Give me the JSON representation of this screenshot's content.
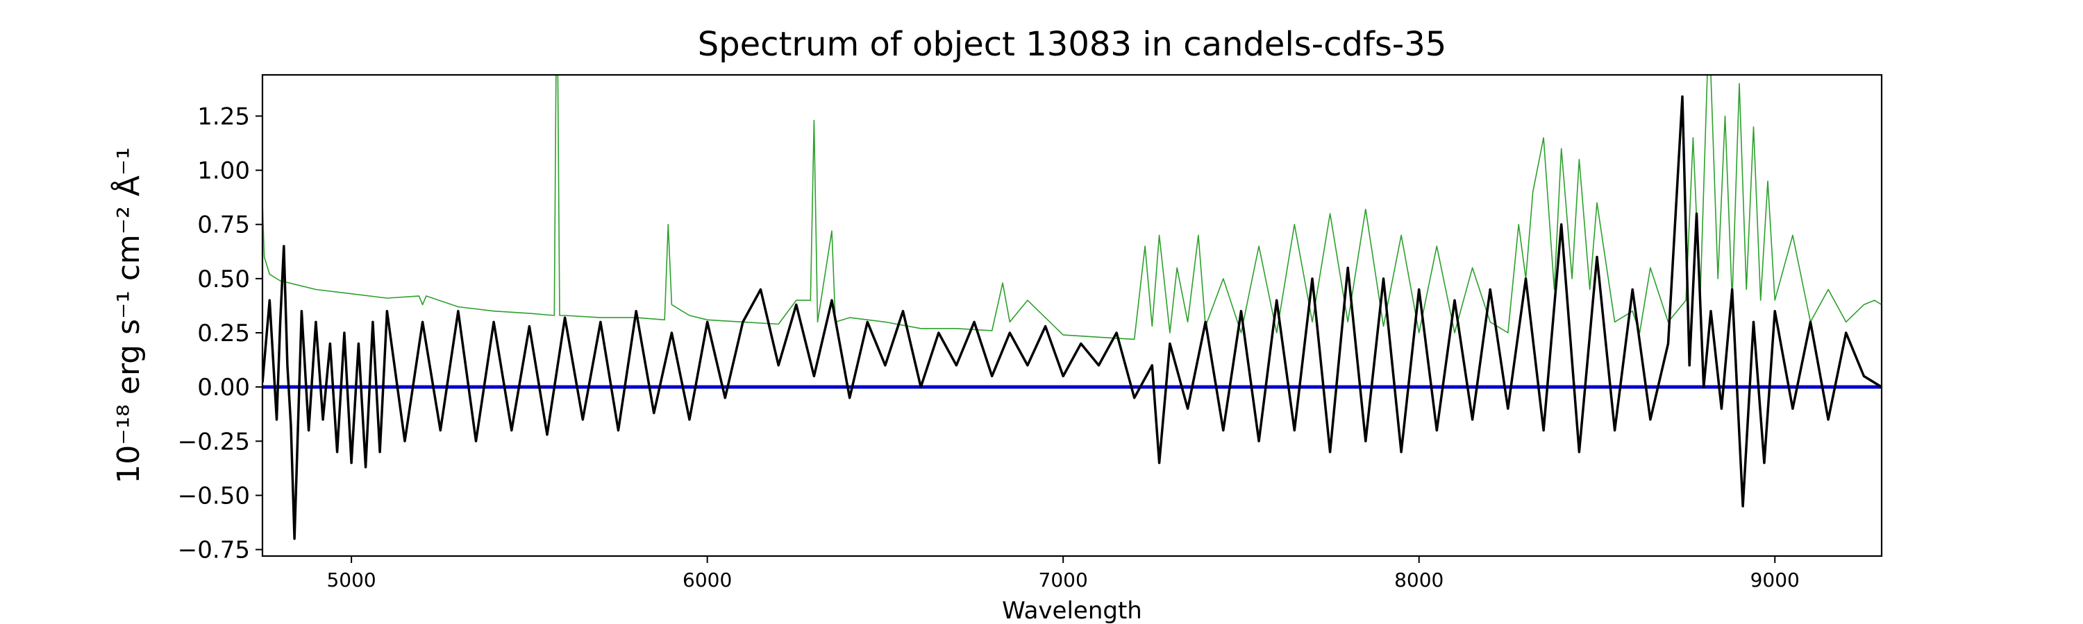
{
  "chart_data": {
    "type": "line",
    "title": "Spectrum of object 13083 in candels-cdfs-35",
    "xlabel": "Wavelength",
    "ylabel": "10⁻¹⁸ erg s⁻¹ cm⁻² Å⁻¹",
    "xlim": [
      4750,
      9300
    ],
    "ylim": [
      -0.78,
      1.44
    ],
    "xticks": [
      5000,
      6000,
      7000,
      8000,
      9000
    ],
    "xtick_labels": [
      "5000",
      "6000",
      "7000",
      "8000",
      "9000"
    ],
    "yticks": [
      -0.75,
      -0.5,
      -0.25,
      0.0,
      0.25,
      0.5,
      0.75,
      1.0,
      1.25
    ],
    "ytick_labels": [
      "−0.75",
      "−0.50",
      "−0.25",
      "0.00",
      "0.25",
      "0.50",
      "0.75",
      "1.00",
      "1.25"
    ],
    "grid": false,
    "colors": {
      "flux": "#000000",
      "error": "#2ca02c",
      "zero": "#0000cc"
    },
    "series": [
      {
        "key": "flux",
        "x": [
          4750,
          4770,
          4790,
          4800,
          4810,
          4820,
          4830,
          4840,
          4860,
          4880,
          4900,
          4920,
          4940,
          4960,
          4980,
          5000,
          5020,
          5040,
          5060,
          5080,
          5100,
          5150,
          5200,
          5250,
          5300,
          5350,
          5400,
          5450,
          5500,
          5550,
          5600,
          5650,
          5700,
          5750,
          5800,
          5850,
          5900,
          5950,
          6000,
          6050,
          6100,
          6150,
          6200,
          6250,
          6300,
          6350,
          6400,
          6450,
          6500,
          6550,
          6600,
          6650,
          6700,
          6750,
          6800,
          6850,
          6900,
          6950,
          7000,
          7050,
          7100,
          7150,
          7200,
          7250,
          7270,
          7300,
          7350,
          7400,
          7450,
          7500,
          7550,
          7600,
          7650,
          7700,
          7750,
          7800,
          7850,
          7900,
          7950,
          8000,
          8050,
          8100,
          8150,
          8200,
          8250,
          8300,
          8350,
          8400,
          8450,
          8500,
          8550,
          8600,
          8650,
          8700,
          8740,
          8760,
          8780,
          8800,
          8820,
          8850,
          8880,
          8910,
          8940,
          8970,
          9000,
          9050,
          9100,
          9150,
          9200,
          9250,
          9300
        ],
        "y": [
          0.02,
          0.4,
          -0.15,
          0.3,
          0.65,
          0.1,
          -0.18,
          -0.7,
          0.35,
          -0.2,
          0.3,
          -0.15,
          0.2,
          -0.3,
          0.25,
          -0.35,
          0.2,
          -0.37,
          0.3,
          -0.3,
          0.35,
          -0.25,
          0.3,
          -0.2,
          0.35,
          -0.25,
          0.3,
          -0.2,
          0.28,
          -0.22,
          0.32,
          -0.15,
          0.3,
          -0.2,
          0.35,
          -0.12,
          0.25,
          -0.15,
          0.3,
          -0.05,
          0.3,
          0.45,
          0.1,
          0.38,
          0.05,
          0.4,
          -0.05,
          0.3,
          0.1,
          0.35,
          0.0,
          0.25,
          0.1,
          0.3,
          0.05,
          0.25,
          0.1,
          0.28,
          0.05,
          0.2,
          0.1,
          0.25,
          -0.05,
          0.1,
          -0.35,
          0.2,
          -0.1,
          0.3,
          -0.2,
          0.35,
          -0.25,
          0.4,
          -0.2,
          0.5,
          -0.3,
          0.55,
          -0.25,
          0.5,
          -0.3,
          0.45,
          -0.2,
          0.4,
          -0.15,
          0.45,
          -0.1,
          0.5,
          -0.2,
          0.75,
          -0.3,
          0.6,
          -0.2,
          0.45,
          -0.15,
          0.2,
          1.34,
          0.1,
          0.8,
          0.0,
          0.35,
          -0.1,
          0.45,
          -0.55,
          0.3,
          -0.35,
          0.35,
          -0.1,
          0.3,
          -0.15,
          0.25,
          0.05,
          0.0
        ]
      },
      {
        "key": "error",
        "x": [
          4750,
          4755,
          4770,
          4800,
          4850,
          4900,
          5000,
          5100,
          5190,
          5200,
          5210,
          5300,
          5400,
          5500,
          5570,
          5575,
          5580,
          5585,
          5600,
          5700,
          5800,
          5880,
          5890,
          5900,
          5950,
          6000,
          6100,
          6200,
          6250,
          6290,
          6300,
          6310,
          6350,
          6360,
          6400,
          6500,
          6600,
          6700,
          6800,
          6830,
          6850,
          6900,
          7000,
          7100,
          7200,
          7230,
          7250,
          7270,
          7300,
          7320,
          7350,
          7380,
          7400,
          7450,
          7500,
          7550,
          7600,
          7650,
          7700,
          7750,
          7800,
          7850,
          7900,
          7950,
          8000,
          8050,
          8100,
          8150,
          8200,
          8250,
          8280,
          8300,
          8320,
          8350,
          8380,
          8400,
          8430,
          8450,
          8480,
          8500,
          8550,
          8600,
          8620,
          8650,
          8700,
          8750,
          8770,
          8790,
          8810,
          8820,
          8840,
          8860,
          8880,
          8900,
          8920,
          8940,
          8960,
          8980,
          9000,
          9050,
          9100,
          9150,
          9200,
          9250,
          9280,
          9300
        ],
        "y": [
          0.85,
          0.6,
          0.52,
          0.49,
          0.47,
          0.45,
          0.43,
          0.41,
          0.42,
          0.38,
          0.42,
          0.37,
          0.35,
          0.34,
          0.33,
          1.44,
          1.44,
          0.33,
          0.33,
          0.32,
          0.32,
          0.31,
          0.75,
          0.38,
          0.33,
          0.31,
          0.3,
          0.29,
          0.4,
          0.4,
          1.23,
          0.3,
          0.72,
          0.3,
          0.32,
          0.3,
          0.27,
          0.27,
          0.26,
          0.48,
          0.3,
          0.4,
          0.24,
          0.23,
          0.22,
          0.65,
          0.28,
          0.7,
          0.25,
          0.55,
          0.3,
          0.7,
          0.28,
          0.5,
          0.25,
          0.65,
          0.25,
          0.75,
          0.3,
          0.8,
          0.3,
          0.82,
          0.28,
          0.7,
          0.25,
          0.65,
          0.25,
          0.55,
          0.3,
          0.25,
          0.75,
          0.5,
          0.9,
          1.15,
          0.45,
          1.1,
          0.5,
          1.05,
          0.45,
          0.85,
          0.3,
          0.35,
          0.25,
          0.55,
          0.3,
          0.4,
          1.15,
          0.4,
          1.44,
          1.44,
          0.5,
          1.25,
          0.4,
          1.4,
          0.45,
          1.2,
          0.4,
          0.95,
          0.4,
          0.7,
          0.3,
          0.45,
          0.3,
          0.38,
          0.4,
          0.38
        ]
      }
    ]
  }
}
